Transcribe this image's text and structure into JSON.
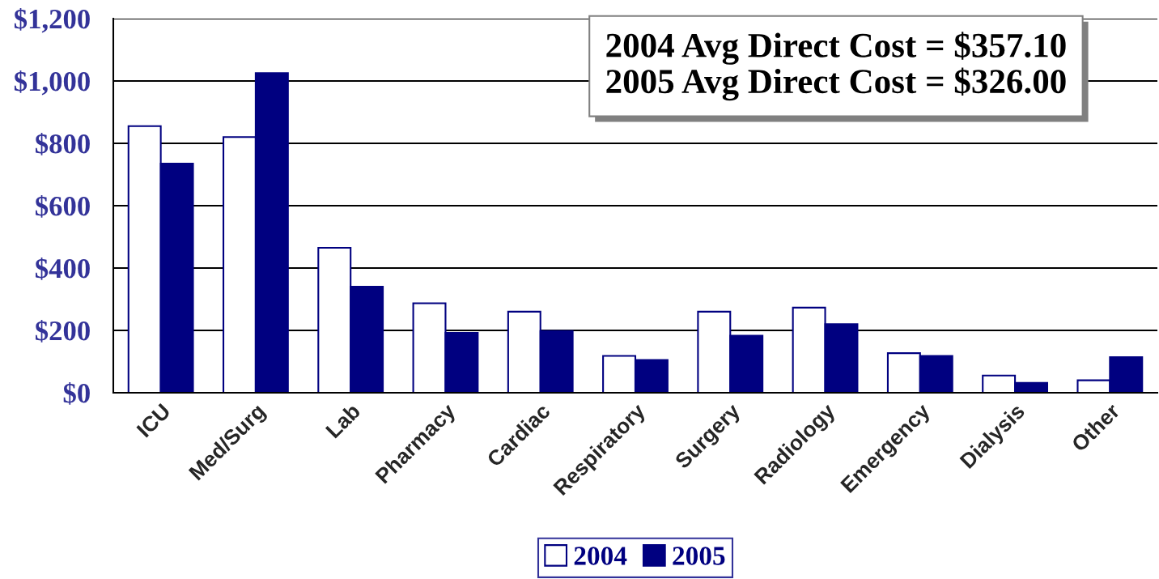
{
  "chart_data": {
    "type": "bar",
    "categories": [
      "ICU",
      "Med/Surg",
      "Lab",
      "Pharmacy",
      "Cardiac",
      "Respiratory",
      "Surgery",
      "Radiology",
      "Emergency",
      "Dialysis",
      "Other"
    ],
    "series": [
      {
        "name": "2004",
        "color": "#ffffff",
        "values": [
          855,
          820,
          465,
          287,
          260,
          118,
          260,
          273,
          127,
          55,
          40
        ]
      },
      {
        "name": "2005",
        "color": "#000080",
        "values": [
          735,
          1025,
          340,
          192,
          198,
          105,
          183,
          220,
          118,
          32,
          114
        ]
      }
    ],
    "ylim": [
      0,
      1200
    ],
    "yticks": [
      {
        "value": 0,
        "label": "$0"
      },
      {
        "value": 200,
        "label": "$200"
      },
      {
        "value": 400,
        "label": "$400"
      },
      {
        "value": 600,
        "label": "$600"
      },
      {
        "value": 800,
        "label": "$800"
      },
      {
        "value": 1000,
        "label": "$1,000"
      },
      {
        "value": 1200,
        "label": "$1,200"
      }
    ],
    "grid": "y",
    "legend": "bottom",
    "annotations": [
      "2004 Avg Direct Cost = $357.10",
      "2005 Avg Direct Cost = $326.00"
    ]
  }
}
